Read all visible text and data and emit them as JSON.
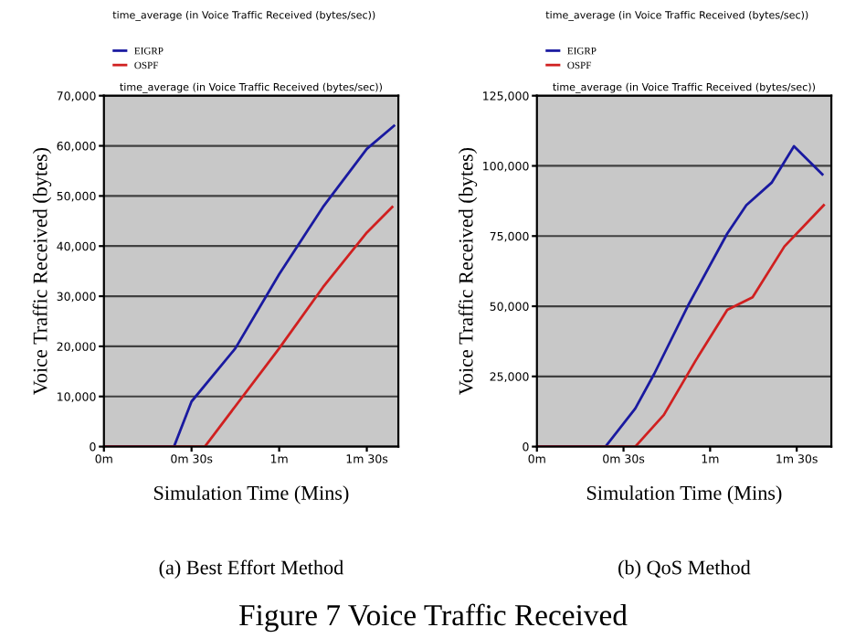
{
  "chart_data": [
    {
      "type": "line",
      "title": "time_average (in Voice Traffic Received (bytes/sec))",
      "subtitle": "time_average (in Voice Traffic Received (bytes/sec))",
      "xlabel": "Simulation Time (Mins)",
      "ylabel": "Voice Traffic Received (bytes)",
      "annotations": [
        "(a) Best Effort Method",
        "Figure 7 Voice Traffic Received"
      ],
      "xlim": [
        0,
        1.68
      ],
      "xticks": [
        {
          "value": 0,
          "label": "0m"
        },
        {
          "value": 0.5,
          "label": "0m 30s"
        },
        {
          "value": 1,
          "label": "1m"
        },
        {
          "value": 1.5,
          "label": "1m 30s"
        }
      ],
      "ylim": [
        0,
        70000
      ],
      "yticks": [
        {
          "value": 0,
          "label": "0"
        },
        {
          "value": 10000,
          "label": "10,000"
        },
        {
          "value": 20000,
          "label": "20,000"
        },
        {
          "value": 30000,
          "label": "30,000"
        },
        {
          "value": 40000,
          "label": "40,000"
        },
        {
          "value": 50000,
          "label": "50,000"
        },
        {
          "value": 60000,
          "label": "60,000"
        },
        {
          "value": 70000,
          "label": "70,000"
        }
      ],
      "grid": "y",
      "legend": "top left",
      "series": [
        {
          "name": "EIGRP",
          "color": "#1a1aa0",
          "x": [
            0,
            0.4,
            0.5,
            0.75,
            1.0,
            1.25,
            1.5,
            1.655
          ],
          "values": [
            0,
            0,
            9000,
            19600,
            34400,
            47800,
            59400,
            64000
          ]
        },
        {
          "name": "OSPF",
          "color": "#d02020",
          "x": [
            0,
            0.576,
            1.0,
            1.25,
            1.5,
            1.645
          ],
          "values": [
            0,
            0,
            19600,
            31800,
            42700,
            47800
          ]
        }
      ]
    },
    {
      "type": "line",
      "title": "time_average (in Voice Traffic Received (bytes/sec))",
      "subtitle": "time_average (in Voice Traffic Received (bytes/sec))",
      "xlabel": "Simulation Time (Mins)",
      "ylabel": "Voice Traffic Received (bytes)",
      "annotations": [
        "(b) QoS Method"
      ],
      "xlim": [
        0,
        1.7
      ],
      "xticks": [
        {
          "value": 0,
          "label": "0m"
        },
        {
          "value": 0.5,
          "label": "0m 30s"
        },
        {
          "value": 1,
          "label": "1m"
        },
        {
          "value": 1.5,
          "label": "1m 30s"
        }
      ],
      "ylim": [
        0,
        125000
      ],
      "yticks": [
        {
          "value": 0,
          "label": "0"
        },
        {
          "value": 25000,
          "label": "25,000"
        },
        {
          "value": 50000,
          "label": "50,000"
        },
        {
          "value": 75000,
          "label": "75,000"
        },
        {
          "value": 100000,
          "label": "100,000"
        },
        {
          "value": 125000,
          "label": "125,000"
        }
      ],
      "grid": "y",
      "legend": "top left",
      "series": [
        {
          "name": "EIGRP",
          "color": "#1a1aa0",
          "x": [
            0,
            0.396,
            0.568,
            0.678,
            0.879,
            1.099,
            1.209,
            1.355,
            1.484,
            1.648
          ],
          "values": [
            0,
            0,
            13600,
            26000,
            51000,
            75900,
            86000,
            94000,
            107000,
            97000
          ]
        },
        {
          "name": "OSPF",
          "color": "#d02020",
          "x": [
            0,
            0.568,
            0.733,
            0.916,
            1.099,
            1.245,
            1.429,
            1.656
          ],
          "values": [
            0,
            0,
            11300,
            30600,
            48700,
            53200,
            71300,
            86000
          ]
        }
      ]
    }
  ]
}
